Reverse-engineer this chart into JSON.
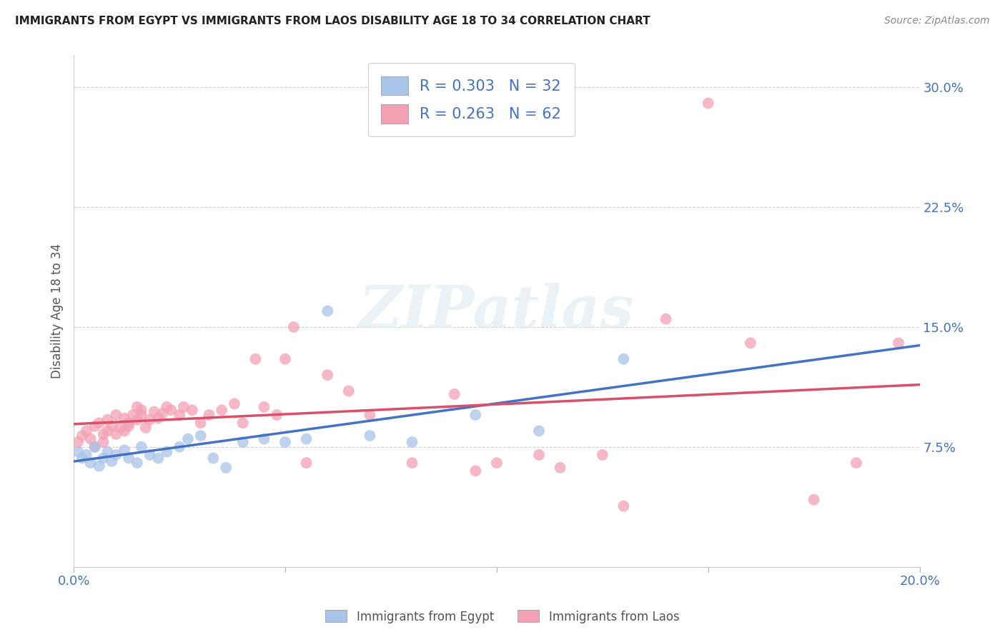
{
  "title": "IMMIGRANTS FROM EGYPT VS IMMIGRANTS FROM LAOS DISABILITY AGE 18 TO 34 CORRELATION CHART",
  "source": "Source: ZipAtlas.com",
  "ylabel": "Disability Age 18 to 34",
  "xlim": [
    0.0,
    0.2
  ],
  "ylim": [
    0.0,
    0.32
  ],
  "ytick_vals": [
    0.075,
    0.15,
    0.225,
    0.3
  ],
  "ytick_labels": [
    "7.5%",
    "15.0%",
    "22.5%",
    "30.0%"
  ],
  "xtick_vals": [
    0.0,
    0.05,
    0.1,
    0.15,
    0.2
  ],
  "xtick_labels": [
    "0.0%",
    "",
    "",
    "",
    "20.0%"
  ],
  "egypt_color": "#a8c4e8",
  "laos_color": "#f4a0b5",
  "egypt_line_color": "#4472c4",
  "laos_line_color": "#d9506a",
  "egypt_R": 0.303,
  "egypt_N": 32,
  "laos_R": 0.263,
  "laos_N": 62,
  "legend_text_color": "#4472c4",
  "background_color": "#ffffff",
  "watermark": "ZIPatlas",
  "egypt_x": [
    0.001,
    0.002,
    0.003,
    0.004,
    0.005,
    0.006,
    0.007,
    0.008,
    0.009,
    0.01,
    0.012,
    0.013,
    0.015,
    0.016,
    0.018,
    0.02,
    0.022,
    0.025,
    0.027,
    0.03,
    0.033,
    0.036,
    0.04,
    0.045,
    0.05,
    0.055,
    0.06,
    0.07,
    0.08,
    0.095,
    0.11,
    0.13
  ],
  "egypt_y": [
    0.072,
    0.068,
    0.07,
    0.065,
    0.075,
    0.063,
    0.068,
    0.072,
    0.066,
    0.07,
    0.073,
    0.068,
    0.065,
    0.075,
    0.07,
    0.068,
    0.072,
    0.075,
    0.08,
    0.082,
    0.068,
    0.062,
    0.078,
    0.08,
    0.078,
    0.08,
    0.16,
    0.082,
    0.078,
    0.095,
    0.085,
    0.13
  ],
  "laos_x": [
    0.001,
    0.002,
    0.003,
    0.004,
    0.005,
    0.005,
    0.006,
    0.007,
    0.007,
    0.008,
    0.008,
    0.009,
    0.01,
    0.01,
    0.011,
    0.012,
    0.012,
    0.013,
    0.013,
    0.014,
    0.015,
    0.015,
    0.016,
    0.016,
    0.017,
    0.018,
    0.019,
    0.02,
    0.021,
    0.022,
    0.023,
    0.025,
    0.026,
    0.028,
    0.03,
    0.032,
    0.035,
    0.038,
    0.04,
    0.043,
    0.045,
    0.048,
    0.05,
    0.052,
    0.055,
    0.06,
    0.065,
    0.07,
    0.08,
    0.09,
    0.095,
    0.1,
    0.11,
    0.115,
    0.125,
    0.13,
    0.14,
    0.15,
    0.16,
    0.175,
    0.185,
    0.195
  ],
  "laos_y": [
    0.078,
    0.082,
    0.085,
    0.08,
    0.088,
    0.075,
    0.09,
    0.083,
    0.078,
    0.085,
    0.092,
    0.088,
    0.083,
    0.095,
    0.087,
    0.085,
    0.093,
    0.09,
    0.088,
    0.095,
    0.092,
    0.1,
    0.095,
    0.098,
    0.087,
    0.092,
    0.097,
    0.093,
    0.096,
    0.1,
    0.098,
    0.095,
    0.1,
    0.098,
    0.09,
    0.095,
    0.098,
    0.102,
    0.09,
    0.13,
    0.1,
    0.095,
    0.13,
    0.15,
    0.065,
    0.12,
    0.11,
    0.095,
    0.065,
    0.108,
    0.06,
    0.065,
    0.07,
    0.062,
    0.07,
    0.038,
    0.155,
    0.29,
    0.14,
    0.042,
    0.065,
    0.14
  ],
  "grid_color": "#d0d0d0",
  "spine_color": "#cccccc",
  "tick_color": "#aaaaaa"
}
